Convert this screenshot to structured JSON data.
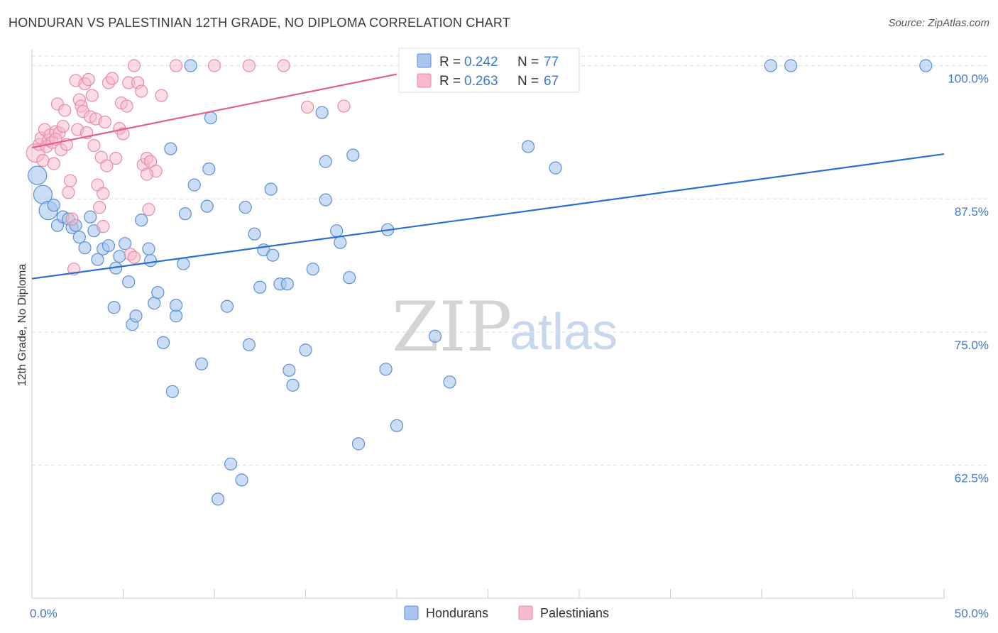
{
  "title": "HONDURAN VS PALESTINIAN 12TH GRADE, NO DIPLOMA CORRELATION CHART",
  "source": "Source: ZipAtlas.com",
  "watermark": {
    "zip": "ZIP",
    "atlas": "atlas"
  },
  "colors": {
    "honduran_fill": "#a9c6ee",
    "honduran_stroke": "#5b8fd6",
    "honduran_line": "#2a6fcf",
    "palestinian_fill": "#f7b9cc",
    "palestinian_stroke": "#e88aa8",
    "palestinian_line": "#e0608a",
    "tick_text": "#3d78c8",
    "grid": "#dddddd"
  },
  "legend": {
    "rows": [
      {
        "r_label": "R =",
        "r_value": "0.242",
        "n_label": "N =",
        "n_value": "77"
      },
      {
        "r_label": "R =",
        "r_value": "0.263",
        "n_label": "N =",
        "n_value": "67"
      }
    ]
  },
  "bottom_legend": [
    "Hondurans",
    "Palestinians"
  ],
  "chart_data": {
    "type": "scatter",
    "title": "HONDURAN VS PALESTINIAN 12TH GRADE, NO DIPLOMA CORRELATION CHART",
    "xlabel": "",
    "ylabel": "12th Grade, No Diploma",
    "xlim": [
      0,
      50
    ],
    "ylim": [
      50,
      101.5
    ],
    "x_tick_labels": [
      "0.0%",
      "50.0%"
    ],
    "y_ticks": [
      62.5,
      75.0,
      87.5,
      100.0
    ],
    "y_tick_labels": [
      "62.5%",
      "75.0%",
      "87.5%",
      "100.0%"
    ],
    "grid": true,
    "legend_position": "top-center",
    "series": [
      {
        "name": "Hondurans",
        "trend": {
          "x": [
            0,
            50
          ],
          "y": [
            80.0,
            91.7
          ]
        },
        "points": [
          [
            0.3,
            89.7,
            1
          ],
          [
            0.6,
            87.9,
            1
          ],
          [
            0.9,
            86.4,
            1
          ],
          [
            1.2,
            86.9,
            0
          ],
          [
            1.4,
            85.0,
            0
          ],
          [
            1.7,
            85.8,
            0
          ],
          [
            2.0,
            85.6,
            0
          ],
          [
            2.2,
            84.8,
            0
          ],
          [
            2.4,
            85.0,
            0
          ],
          [
            2.6,
            83.9,
            0
          ],
          [
            2.9,
            82.9,
            0
          ],
          [
            3.2,
            85.8,
            0
          ],
          [
            3.4,
            84.5,
            0
          ],
          [
            3.6,
            81.8,
            0
          ],
          [
            3.9,
            82.8,
            0
          ],
          [
            4.2,
            83.1,
            0
          ],
          [
            4.5,
            77.3,
            0
          ],
          [
            4.6,
            81.0,
            0
          ],
          [
            4.8,
            82.1,
            0
          ],
          [
            5.1,
            83.3,
            0
          ],
          [
            5.3,
            79.7,
            0
          ],
          [
            5.5,
            75.7,
            0
          ],
          [
            5.7,
            76.5,
            0
          ],
          [
            6.0,
            85.5,
            0
          ],
          [
            6.4,
            82.8,
            0
          ],
          [
            6.5,
            81.7,
            0
          ],
          [
            6.7,
            77.7,
            0
          ],
          [
            6.9,
            78.7,
            0
          ],
          [
            7.2,
            74.0,
            0
          ],
          [
            7.6,
            92.2,
            0
          ],
          [
            7.7,
            69.4,
            0
          ],
          [
            7.9,
            76.5,
            0
          ],
          [
            8.3,
            81.4,
            0
          ],
          [
            8.4,
            86.1,
            0
          ],
          [
            8.7,
            100.0,
            0
          ],
          [
            8.9,
            88.8,
            0
          ],
          [
            9.3,
            72.0,
            0
          ],
          [
            9.6,
            86.8,
            0
          ],
          [
            9.7,
            90.3,
            0
          ],
          [
            9.8,
            95.1,
            0
          ],
          [
            10.7,
            77.4,
            0
          ],
          [
            10.9,
            62.6,
            0
          ],
          [
            11.5,
            61.1,
            0
          ],
          [
            11.7,
            86.7,
            0
          ],
          [
            11.9,
            73.8,
            0
          ],
          [
            12.2,
            84.2,
            0
          ],
          [
            12.5,
            79.2,
            0
          ],
          [
            12.7,
            82.7,
            0
          ],
          [
            13.1,
            88.4,
            0
          ],
          [
            13.2,
            82.2,
            0
          ],
          [
            13.6,
            79.5,
            0
          ],
          [
            14.0,
            79.5,
            0
          ],
          [
            14.1,
            71.4,
            0
          ],
          [
            14.3,
            70.0,
            0
          ],
          [
            15.0,
            73.3,
            0
          ],
          [
            15.4,
            80.9,
            0
          ],
          [
            15.9,
            95.6,
            0
          ],
          [
            16.1,
            91.0,
            0
          ],
          [
            16.1,
            87.4,
            0
          ],
          [
            16.7,
            84.5,
            0
          ],
          [
            16.9,
            83.4,
            0
          ],
          [
            17.4,
            80.1,
            0
          ],
          [
            17.6,
            91.6,
            0
          ],
          [
            17.9,
            64.5,
            0
          ],
          [
            19.4,
            71.5,
            0
          ],
          [
            19.5,
            84.6,
            0
          ],
          [
            20.0,
            66.2,
            0
          ],
          [
            22.1,
            74.6,
            0
          ],
          [
            22.9,
            70.3,
            0
          ],
          [
            25.2,
            100.0,
            0
          ],
          [
            27.2,
            92.4,
            0
          ],
          [
            28.7,
            90.4,
            0
          ],
          [
            40.5,
            100.0,
            0
          ],
          [
            41.6,
            100.0,
            0
          ],
          [
            49.0,
            100.0,
            0
          ],
          [
            10.2,
            59.3,
            0
          ],
          [
            7.9,
            77.5,
            0
          ]
        ]
      },
      {
        "name": "Palestinians",
        "trend": {
          "x": [
            0,
            20
          ],
          "y": [
            92.3,
            99.2
          ]
        },
        "points": [
          [
            0.2,
            91.8,
            1
          ],
          [
            0.4,
            92.6,
            0
          ],
          [
            0.5,
            93.2,
            0
          ],
          [
            0.6,
            91.1,
            0
          ],
          [
            0.7,
            94.0,
            0
          ],
          [
            0.8,
            92.4,
            0
          ],
          [
            0.9,
            93.0,
            0
          ],
          [
            1.0,
            93.5,
            0
          ],
          [
            1.1,
            92.8,
            0
          ],
          [
            1.2,
            90.8,
            0
          ],
          [
            1.3,
            93.8,
            0
          ],
          [
            1.4,
            96.4,
            0
          ],
          [
            1.5,
            93.7,
            0
          ],
          [
            1.6,
            92.1,
            0
          ],
          [
            1.7,
            94.3,
            0
          ],
          [
            1.8,
            95.8,
            0
          ],
          [
            1.9,
            92.6,
            0
          ],
          [
            2.0,
            88.1,
            0
          ],
          [
            2.1,
            89.2,
            0
          ],
          [
            2.2,
            85.6,
            0
          ],
          [
            2.3,
            80.9,
            0
          ],
          [
            2.4,
            98.6,
            0
          ],
          [
            2.5,
            94.0,
            0
          ],
          [
            2.6,
            96.8,
            0
          ],
          [
            2.7,
            96.2,
            0
          ],
          [
            2.8,
            95.7,
            0
          ],
          [
            2.9,
            98.3,
            0
          ],
          [
            3.0,
            93.7,
            0
          ],
          [
            3.1,
            98.7,
            0
          ],
          [
            3.2,
            95.2,
            0
          ],
          [
            3.3,
            97.2,
            0
          ],
          [
            3.4,
            92.5,
            0
          ],
          [
            3.5,
            95.0,
            0
          ],
          [
            3.6,
            88.8,
            0
          ],
          [
            3.7,
            86.7,
            0
          ],
          [
            3.8,
            91.4,
            0
          ],
          [
            3.9,
            88.0,
            0
          ],
          [
            4.0,
            94.7,
            0
          ],
          [
            4.1,
            90.6,
            0
          ],
          [
            4.2,
            98.4,
            0
          ],
          [
            4.4,
            98.8,
            0
          ],
          [
            4.6,
            91.3,
            0
          ],
          [
            4.8,
            94.1,
            0
          ],
          [
            4.9,
            96.5,
            0
          ],
          [
            5.0,
            93.6,
            0
          ],
          [
            5.2,
            96.2,
            0
          ],
          [
            5.3,
            98.4,
            0
          ],
          [
            5.4,
            82.3,
            0
          ],
          [
            5.6,
            100.0,
            0
          ],
          [
            5.6,
            82.0,
            0
          ],
          [
            5.8,
            98.4,
            0
          ],
          [
            6.0,
            97.6,
            0
          ],
          [
            6.1,
            90.7,
            0
          ],
          [
            6.3,
            91.3,
            0
          ],
          [
            6.4,
            86.5,
            0
          ],
          [
            6.5,
            91.0,
            0
          ],
          [
            6.8,
            90.1,
            0
          ],
          [
            7.1,
            97.2,
            0
          ],
          [
            7.9,
            100.0,
            0
          ],
          [
            10.0,
            100.0,
            0
          ],
          [
            11.9,
            100.0,
            0
          ],
          [
            13.8,
            100.0,
            0
          ],
          [
            15.1,
            96.1,
            0
          ],
          [
            17.1,
            96.2,
            0
          ],
          [
            3.9,
            84.9,
            0
          ],
          [
            1.3,
            93.1,
            0
          ],
          [
            6.3,
            89.8,
            0
          ]
        ]
      }
    ]
  }
}
